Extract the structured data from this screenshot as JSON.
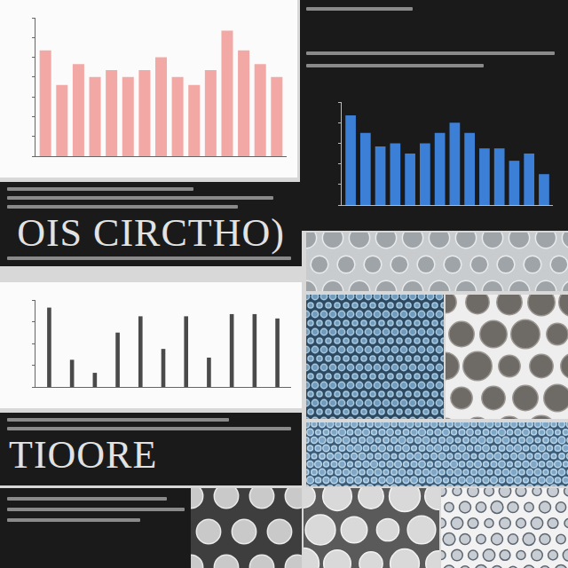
{
  "chart_data": [
    {
      "type": "bar",
      "categories": [
        null,
        null,
        null,
        null,
        null,
        null,
        null,
        null,
        null,
        null,
        null,
        null,
        null,
        null,
        null
      ],
      "values": [
        10.7,
        7.2,
        9.3,
        8.0,
        8.7,
        8.0,
        8.7,
        10.0,
        8.0,
        7.2,
        8.7,
        12.7,
        10.7,
        9.3,
        8.0
      ],
      "color": "#f2a9a6",
      "ylim": [
        0,
        14
      ],
      "yticks": [
        0,
        2,
        4,
        6,
        8,
        10,
        12,
        14
      ],
      "grid": false,
      "tick_labels": false
    },
    {
      "type": "bar",
      "categories": [
        null,
        null,
        null,
        null,
        null,
        null,
        null,
        null,
        null,
        null,
        null,
        null,
        null,
        null
      ],
      "values": [
        8.7,
        7.0,
        5.7,
        6.0,
        5.0,
        6.0,
        7.0,
        8.0,
        7.0,
        5.5,
        5.5,
        4.3,
        5.0,
        3.0
      ],
      "color": "#3b7fd6",
      "ylim": [
        0,
        10
      ],
      "yticks": [
        0,
        2,
        4,
        6,
        8,
        10
      ],
      "grid": false,
      "tick_labels": false
    },
    {
      "type": "bar",
      "categories": [
        null,
        null,
        null,
        null,
        null,
        null,
        null,
        null,
        null,
        null,
        null
      ],
      "values": [
        7.3,
        2.5,
        1.3,
        5.0,
        6.5,
        3.5,
        6.5,
        2.7,
        6.7,
        6.7,
        6.3
      ],
      "color": "#4a4a4a",
      "ylim": [
        0,
        8
      ],
      "yticks": [
        0,
        2,
        4,
        6,
        8
      ],
      "grid": false,
      "tick_labels": false
    }
  ],
  "text_panels": [
    "OIS CIRCTHO)",
    "TIOORE"
  ]
}
